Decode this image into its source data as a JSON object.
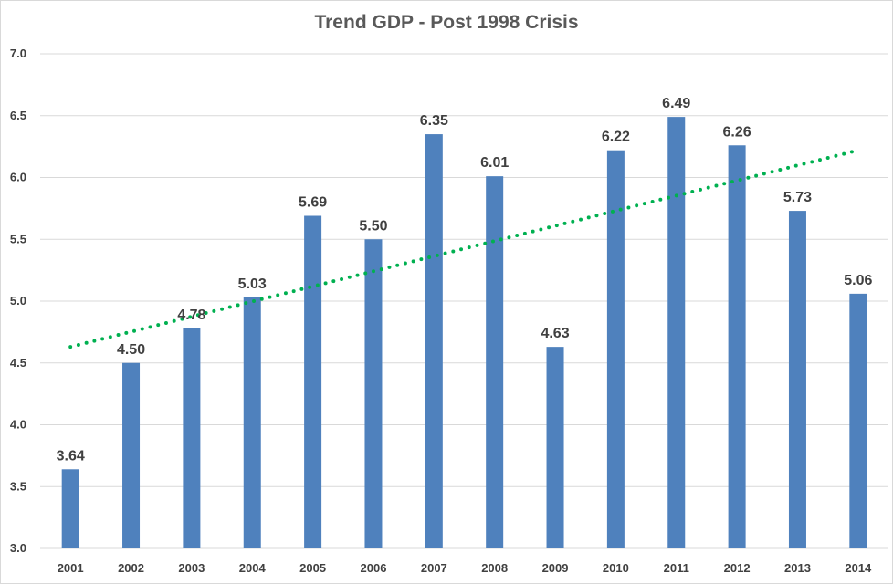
{
  "chart_data": {
    "type": "bar",
    "title": "Trend GDP - Post 1998 Crisis",
    "xlabel": "",
    "ylabel": "",
    "categories": [
      "2001",
      "2002",
      "2003",
      "2004",
      "2005",
      "2006",
      "2007",
      "2008",
      "2009",
      "2010",
      "2011",
      "2012",
      "2013",
      "2014"
    ],
    "values": [
      3.64,
      4.5,
      4.78,
      5.03,
      5.69,
      5.5,
      6.35,
      6.01,
      4.63,
      6.22,
      6.49,
      6.26,
      5.73,
      5.06
    ],
    "data_labels": [
      "3.64",
      "4.50",
      "4.78",
      "5.03",
      "5.69",
      "5.50",
      "6.35",
      "6.01",
      "4.63",
      "6.22",
      "6.49",
      "6.26",
      "5.73",
      "5.06"
    ],
    "ylim": [
      3.0,
      7.0
    ],
    "y_ticks": [
      "3.0",
      "3.5",
      "4.0",
      "4.5",
      "5.0",
      "5.5",
      "6.0",
      "6.5",
      "7.0"
    ],
    "grid": true,
    "legend": "none",
    "trendline": {
      "type": "linear",
      "style": "dotted",
      "start_value": 4.63,
      "end_value": 6.22
    },
    "colors": {
      "bar": "#4f81bd",
      "trendline": "#00b050",
      "grid": "#d9d9d9",
      "text": "#404040",
      "title": "#595959"
    }
  }
}
